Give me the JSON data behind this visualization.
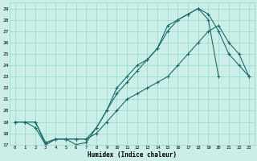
{
  "xlabel": "Humidex (Indice chaleur)",
  "bg_color": "#cceee8",
  "grid_color": "#99ddcc",
  "line_color": "#1a6b6b",
  "ylim": [
    17,
    29.5
  ],
  "xlim": [
    -0.5,
    23.5
  ],
  "yticks": [
    17,
    18,
    19,
    20,
    21,
    22,
    23,
    24,
    25,
    26,
    27,
    28,
    29
  ],
  "xticks": [
    0,
    1,
    2,
    3,
    4,
    5,
    6,
    7,
    8,
    9,
    10,
    11,
    12,
    13,
    14,
    15,
    16,
    17,
    18,
    19,
    20,
    21,
    22,
    23
  ],
  "line1_x": [
    0,
    1,
    2,
    3,
    4,
    5,
    6,
    7,
    8,
    9,
    10,
    11,
    12,
    13,
    14,
    15,
    16,
    17,
    18,
    19,
    20,
    21,
    22,
    23
  ],
  "line1_y": [
    19,
    19,
    19,
    17,
    17.5,
    17.5,
    17,
    17.2,
    18.5,
    20,
    21.5,
    22.5,
    23.5,
    24.5,
    25.5,
    27,
    28,
    28.5,
    29,
    28.5,
    27,
    25,
    24,
    23
  ],
  "line2_x": [
    0,
    1,
    2,
    3,
    4,
    5,
    6,
    7,
    8,
    9,
    10,
    11,
    12,
    13,
    14,
    15,
    16,
    17,
    18,
    19,
    20
  ],
  "line2_y": [
    19,
    19,
    18.5,
    17,
    17.5,
    17.5,
    17.5,
    17.5,
    18.5,
    20,
    22,
    23,
    24,
    24.5,
    25.5,
    27.5,
    28,
    28.5,
    29,
    28,
    23
  ],
  "line3_x": [
    0,
    1,
    2,
    3,
    4,
    5,
    6,
    7,
    8,
    9,
    10,
    11,
    12,
    13,
    14,
    15,
    16,
    17,
    18,
    19,
    20,
    21,
    22,
    23
  ],
  "line3_y": [
    19,
    19,
    19,
    17.2,
    17.5,
    17.5,
    17.5,
    17.5,
    18,
    19,
    20,
    21,
    21.5,
    22,
    22.5,
    23,
    24,
    25,
    26,
    27,
    27.5,
    26,
    25,
    23
  ]
}
